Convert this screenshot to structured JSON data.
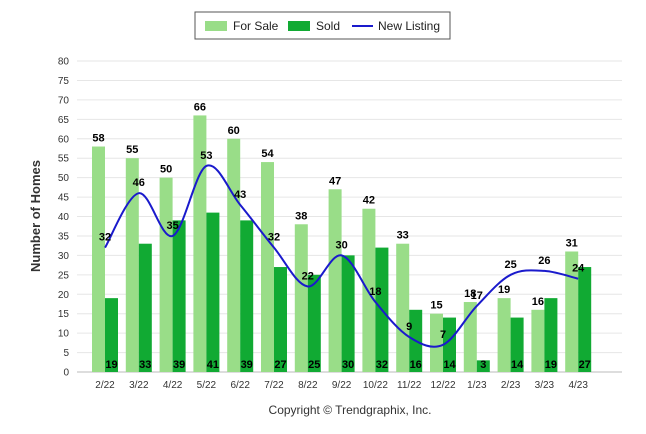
{
  "chart_data": {
    "type": "bar",
    "categories": [
      "2/22",
      "3/22",
      "4/22",
      "5/22",
      "6/22",
      "7/22",
      "8/22",
      "9/22",
      "10/22",
      "11/22",
      "12/22",
      "1/23",
      "2/23",
      "3/23",
      "4/23"
    ],
    "series": [
      {
        "name": "For Sale",
        "type": "bar",
        "color": "#99dd88",
        "values": [
          58,
          55,
          50,
          66,
          60,
          54,
          38,
          47,
          42,
          33,
          15,
          18,
          19,
          16,
          31
        ]
      },
      {
        "name": "Sold",
        "type": "bar",
        "color": "#11aa33",
        "values": [
          19,
          33,
          39,
          41,
          39,
          27,
          25,
          30,
          32,
          16,
          14,
          3,
          14,
          19,
          27
        ]
      },
      {
        "name": "New Listing",
        "type": "line",
        "color": "#1a1acc",
        "values": [
          32,
          46,
          35,
          53,
          43,
          32,
          22,
          30,
          18,
          9,
          7,
          17,
          25,
          26,
          24
        ]
      }
    ],
    "ylabel": "Number of Homes",
    "xlabel": "",
    "ylim": [
      0,
      80
    ],
    "yticks": [
      0,
      5,
      10,
      15,
      20,
      25,
      30,
      35,
      40,
      45,
      50,
      55,
      60,
      65,
      70,
      75,
      80
    ],
    "grid": true,
    "legend": "top-center"
  },
  "footer": {
    "copyright": "Copyright © Trendgraphix, Inc."
  }
}
